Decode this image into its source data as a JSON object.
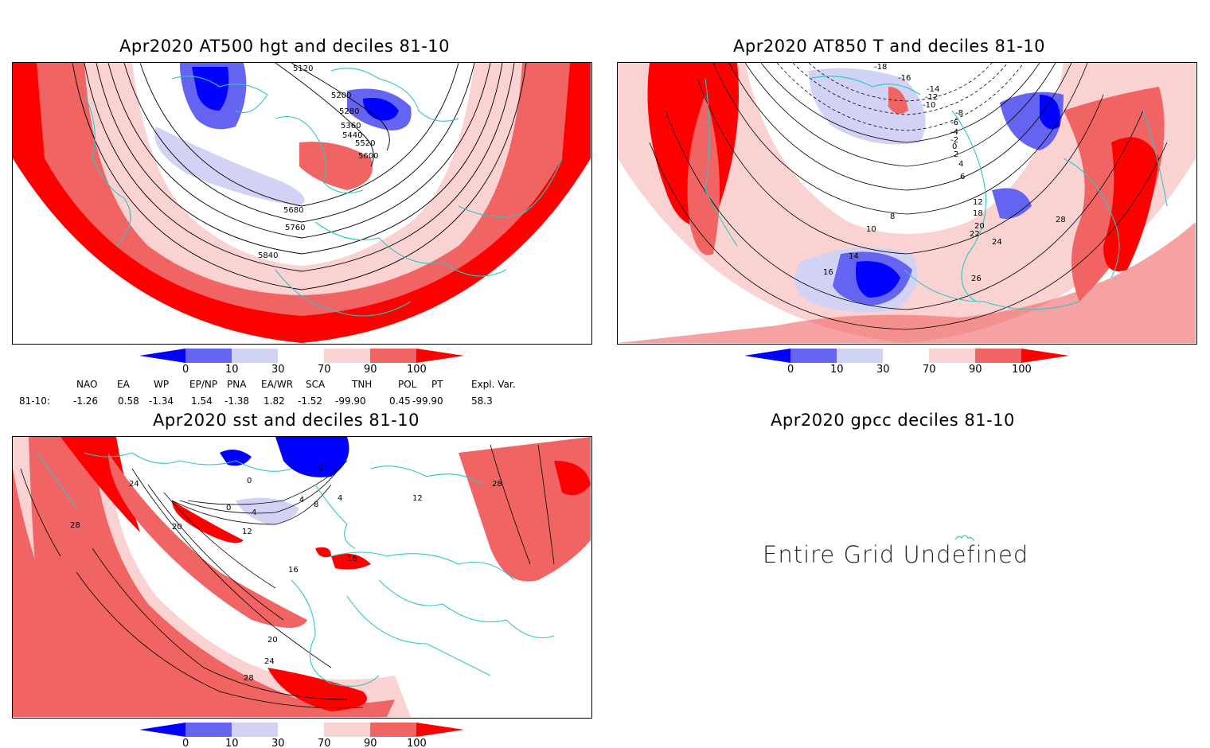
{
  "panels": {
    "p1_title": "Apr2020 AT500 hgt and deciles 81-10",
    "p2_title": "Apr2020 AT850 T and deciles 81-10",
    "p3_title": "Apr2020 sst and deciles 81-10",
    "p4_title": "Apr2020 gpcc deciles 81-10",
    "p4_message": "Entire Grid Undefined"
  },
  "colorbar": {
    "ticks": [
      "0",
      "10",
      "30",
      "70",
      "90",
      "100"
    ],
    "colors": [
      "#0000ff",
      "#6464f0",
      "#d2d2f5",
      "#ffffff",
      "#fad2d2",
      "#f06464",
      "#ff0000"
    ]
  },
  "p1_contours": [
    "5120",
    "5200",
    "5280",
    "5360",
    "5440",
    "5520",
    "5600",
    "5680",
    "5760",
    "5840"
  ],
  "p2_contours": [
    "-18",
    "-16",
    "-14",
    "-12",
    "-10",
    "-8",
    "-6",
    "-4",
    "-2",
    "0",
    "2",
    "4",
    "6",
    "8",
    "10",
    "12",
    "14",
    "16",
    "18",
    "20",
    "22",
    "24",
    "26",
    "28"
  ],
  "p3_contours": [
    "0",
    "4",
    "8",
    "12",
    "16",
    "20",
    "24",
    "28"
  ],
  "indices": {
    "headers": [
      "NAO",
      "EA",
      "WP",
      "EP/NP",
      "PNA",
      "EA/WR",
      "SCA",
      "TNH",
      "POL",
      "PT",
      "Expl. Var."
    ],
    "row_label": "81-10:",
    "values": [
      "-1.26",
      "0.58",
      "-1.34",
      "1.54",
      "-1.38",
      "1.82",
      "-1.52",
      "-99.90",
      "0.45",
      "-99.90",
      "58.3"
    ]
  }
}
